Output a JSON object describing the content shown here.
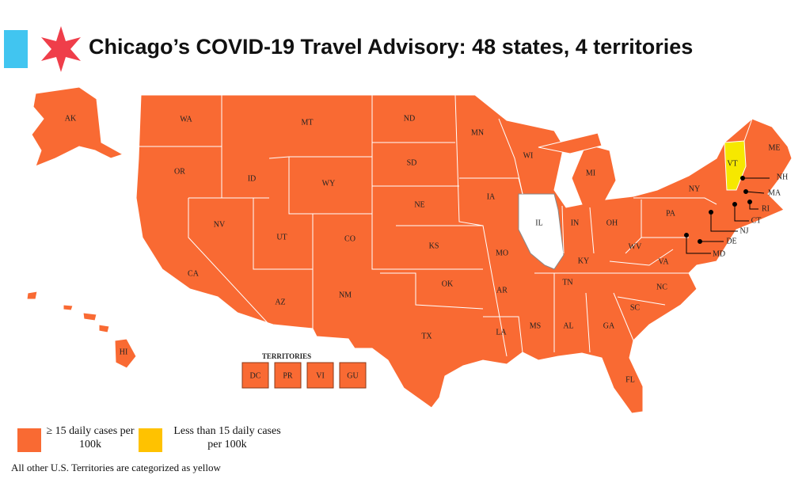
{
  "header": {
    "title": "Chicago’s COVID-19 Travel Advisory: 48 states, 4 territories"
  },
  "map": {
    "states": [
      "AK",
      "WA",
      "MT",
      "ND",
      "MN",
      "WI",
      "MI",
      "OR",
      "ID",
      "WY",
      "SD",
      "IA",
      "NE",
      "IL",
      "IN",
      "OH",
      "PA",
      "NY",
      "NV",
      "UT",
      "CO",
      "KS",
      "MO",
      "KY",
      "WV",
      "VA",
      "CA",
      "AZ",
      "NM",
      "OK",
      "AR",
      "TN",
      "NC",
      "SC",
      "TX",
      "LA",
      "MS",
      "AL",
      "GA",
      "FL",
      "HI",
      "ME",
      "VT",
      "NH",
      "MA",
      "RI",
      "CT",
      "NJ",
      "DE",
      "MD"
    ],
    "territories_title": "TERRITORIES",
    "territories": [
      "DC",
      "PR",
      "VI",
      "GU"
    ]
  },
  "legend": {
    "items": [
      {
        "label": "≥ 15 daily cases per 100k"
      },
      {
        "label": "Less than 15 daily cases per 100k"
      }
    ]
  },
  "footnote": "All other U.S. Territories are categorized as yellow"
}
